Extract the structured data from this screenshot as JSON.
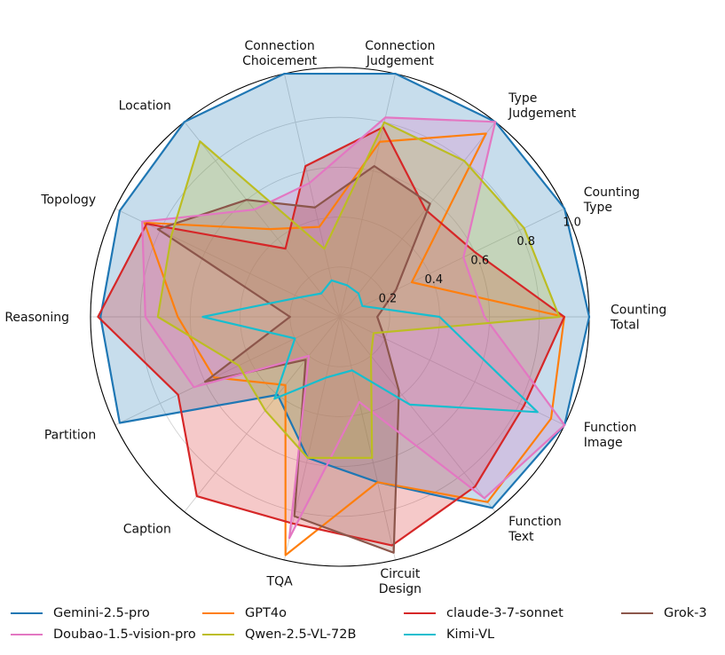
{
  "chart_data": {
    "type": "radar",
    "title": "",
    "categories": [
      "Counting\nTotal",
      "Counting\nType",
      "Type\nJudgement",
      "Connection\nJudgement",
      "Connection\nChoicement",
      "Location",
      "Topology",
      "Reasoning",
      "Partition",
      "Caption",
      "TQA",
      "Circuit\nDesign",
      "Function\nText",
      "Function\nImage"
    ],
    "rlim": [
      0,
      1.0
    ],
    "rticks": [
      0.2,
      0.4,
      0.6,
      0.8,
      1.0
    ],
    "rtick_labels": [
      "0.2",
      "0.4",
      "0.6",
      "0.8",
      "1.0"
    ],
    "grid": true,
    "legend_position": "bottom",
    "series": [
      {
        "name": "Gemini-2.5-pro",
        "color": "#1f77b4",
        "fill": true,
        "values": [
          1.0,
          1.0,
          1.0,
          1.0,
          1.0,
          1.0,
          0.98,
          0.96,
          0.98,
          0.4,
          0.58,
          0.68,
          0.98,
          1.0
        ]
      },
      {
        "name": "GPT4o",
        "color": "#ff7f0e",
        "fill": false,
        "values": [
          0.9,
          0.32,
          0.94,
          0.72,
          0.37,
          0.45,
          0.87,
          0.65,
          0.56,
          0.35,
          0.98,
          0.68,
          0.95,
          0.94
        ]
      },
      {
        "name": "claude-3-7-sonnet",
        "color": "#d62728",
        "fill": true,
        "values": [
          0.9,
          0.6,
          0.55,
          0.78,
          0.62,
          0.35,
          0.86,
          0.97,
          0.72,
          0.92,
          0.85,
          0.94,
          0.87,
          0.82
        ]
      },
      {
        "name": "Grok-3",
        "color": "#8c564b",
        "fill": true,
        "values": [
          0.15,
          0.25,
          0.58,
          0.62,
          0.45,
          0.6,
          0.81,
          0.2,
          0.6,
          0.22,
          0.82,
          0.97,
          0.38,
          0.2
        ]
      },
      {
        "name": "Doubao-1.5-vision-pro",
        "color": "#e377c2",
        "fill": true,
        "values": [
          0.58,
          0.55,
          1.0,
          0.82,
          0.55,
          0.55,
          0.88,
          0.78,
          0.65,
          0.2,
          0.91,
          0.35,
          0.93,
          1.0
        ]
      },
      {
        "name": "Qwen-2.5-VL-72B",
        "color": "#bcbd22",
        "fill": true,
        "values": [
          0.88,
          0.82,
          0.8,
          0.8,
          0.28,
          0.9,
          0.75,
          0.73,
          0.45,
          0.48,
          0.58,
          0.58,
          0.2,
          0.15
        ]
      },
      {
        "name": "Kimi-VL",
        "color": "#17becf",
        "fill": false,
        "values": [
          0.4,
          0.1,
          0.12,
          0.13,
          0.15,
          0.12,
          0.18,
          0.55,
          0.2,
          0.42,
          0.25,
          0.22,
          0.45,
          0.88
        ]
      }
    ]
  }
}
